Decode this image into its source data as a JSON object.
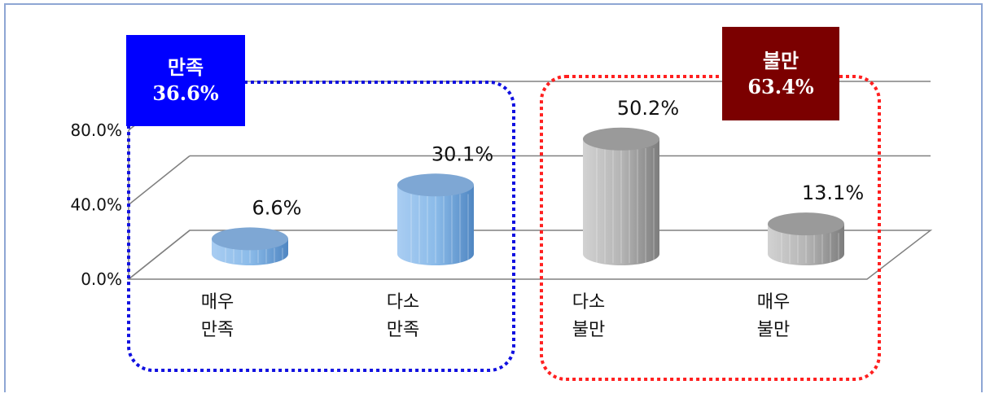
{
  "chart_data": {
    "type": "bar",
    "categories": [
      "매우\n만족",
      "다소\n만족",
      "다소\n불만",
      "매우\n불만"
    ],
    "values": [
      6.6,
      30.1,
      50.2,
      13.1
    ],
    "data_labels": [
      "6.6%",
      "30.1%",
      "50.2%",
      "13.1%"
    ],
    "yticks": [
      "0.0%",
      "40.0%",
      "80.0%"
    ],
    "ylim": [
      0,
      80
    ],
    "grid": true,
    "title": "",
    "xlabel": "",
    "ylabel": "",
    "groups": [
      {
        "name": "만족",
        "value": "36.6%",
        "color": "#0000ff",
        "border": "#1010e0"
      },
      {
        "name": "불만",
        "value": "63.4%",
        "color": "#7b0000",
        "border": "#ff2020"
      }
    ],
    "bar_colors": [
      "#7aa6d6",
      "#7aa6d6",
      "#a8a8a8",
      "#a8a8a8"
    ]
  }
}
